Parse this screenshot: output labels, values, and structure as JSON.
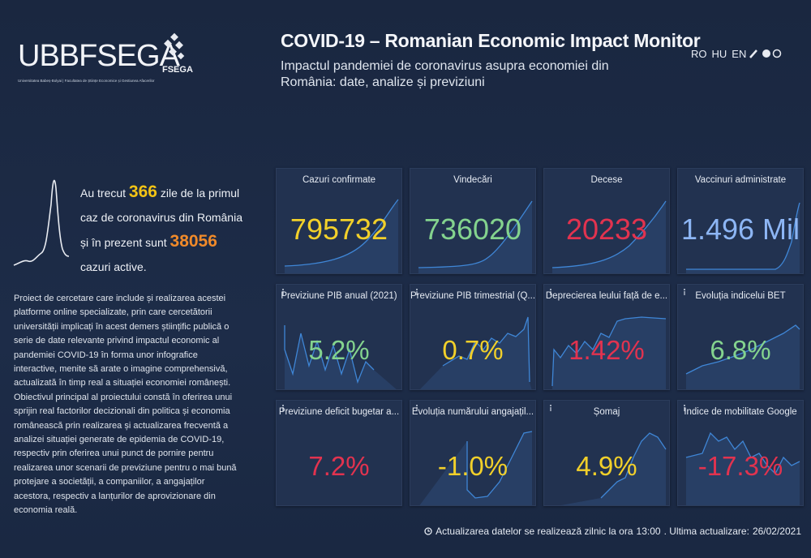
{
  "header": {
    "logo_text": "UBBFSEGA",
    "logo_sub": "Universitatea Babeș-Bolyai | Facultatea de Științe Economice și Gestiunea Afacerilor",
    "logo_badge": "FSEGA",
    "title": "COVID-19 – Romanian Economic Impact Monitor",
    "subtitle": "Impactul pandemiei de coronavirus asupra economiei din România: date, analize și previziuni",
    "languages": [
      "RO",
      "HU",
      "EN"
    ]
  },
  "intro": {
    "before_days": "Au trecut",
    "days": "366",
    "after_days": "zile de la primul caz de coronavirus din România și în prezent sunt",
    "active": "38056",
    "after_active": "cazuri active."
  },
  "description": "Proiect de cercetare care include și realizarea acestei platforme online specializate, prin care cercetătorii universității implicați în acest demers științific publică o serie de date relevante privind impactul economic al pandemiei COVID-19 în forma unor infografice interactive, menite să arate o imagine comprehensivă, actualizată în timp real a situației economiei românești. Obiectivul principal al proiectului constă în oferirea unui sprijin real factorilor decizionali din politica și economia românească prin realizarea și actualizarea frecventă a analizei situației generate de epidemia de COVID-19, respectiv prin oferirea unui punct de pornire pentru realizarea unor scenarii de previziune pentru o mai bună protejare a societății, a companiilor, a angajaților acestora, respectiv a lanțurilor de aprovizionare din economia reală.",
  "cards": [
    {
      "title": "Cazuri confirmate",
      "value": "795732",
      "color": "#f2d02a"
    },
    {
      "title": "Vindecări",
      "value": "736020",
      "color": "#84d38e"
    },
    {
      "title": "Decese",
      "value": "20233",
      "color": "#e2334f"
    },
    {
      "title": "Vaccinuri administrate",
      "value": "1.496 Mil",
      "color": "#8db6f5"
    },
    {
      "title": "Previziune PIB anual (2021)",
      "value": "5.2%",
      "color": "#84d38e"
    },
    {
      "title": "Previziune PIB trimestrial (Q...",
      "value": "0.7%",
      "color": "#f2d02a"
    },
    {
      "title": "Deprecierea leului față de e...",
      "value": "1.42%",
      "color": "#e2334f"
    },
    {
      "title": "Evoluția indicelui BET",
      "value": "6.8%",
      "color": "#84d38e"
    },
    {
      "title": "Previziune deficit bugetar a...",
      "value": "7.2%",
      "color": "#e2334f"
    },
    {
      "title": "Evoluția numărului angajațil...",
      "value": "-1.0%",
      "color": "#f2d02a"
    },
    {
      "title": "Șomaj",
      "value": "4.9%",
      "color": "#f2d02a"
    },
    {
      "title": "Indice de mobilitate Google",
      "value": "-17.3%",
      "color": "#e2334f"
    }
  ],
  "footer": {
    "before_hour": "Actualizarea datelor se realizează zilnic la ora",
    "hour": "13:00",
    "middle": ". Ultima actualizare:",
    "date": "26/02/2021"
  }
}
